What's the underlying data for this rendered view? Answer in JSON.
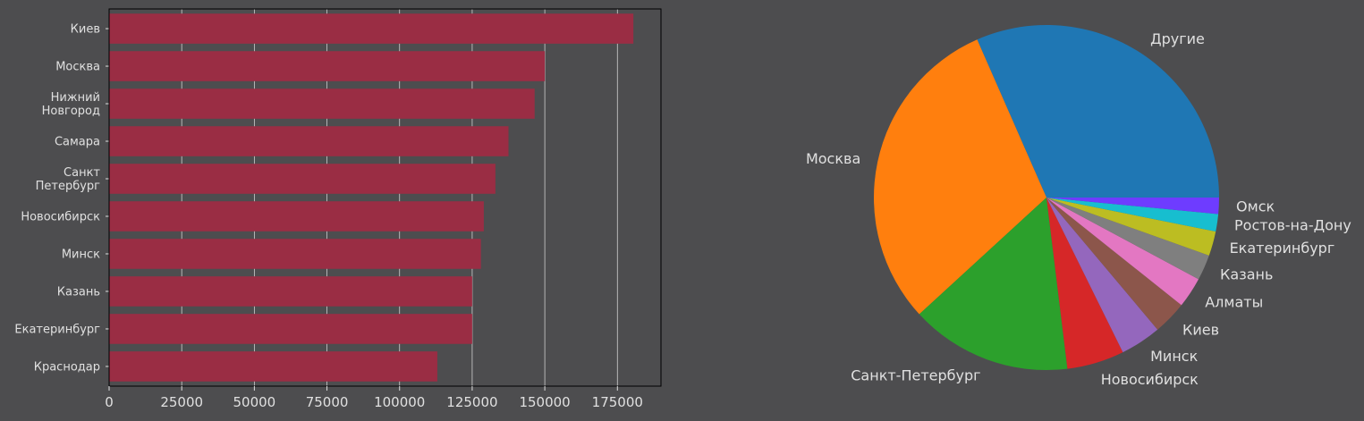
{
  "chart_data": [
    {
      "type": "bar",
      "orientation": "horizontal",
      "categories": [
        "Киев",
        "Москва",
        "Нижний\nНовгород",
        "Самара",
        "Санкт\nПетербург",
        "Новосибирск",
        "Минск",
        "Казань",
        "Екатеринбург",
        "Краснодар"
      ],
      "values": [
        180500,
        150000,
        146500,
        137500,
        133000,
        129000,
        128000,
        125000,
        125000,
        113000
      ],
      "xlim": [
        0,
        190000
      ],
      "xticks": [
        0,
        25000,
        50000,
        75000,
        100000,
        125000,
        150000,
        175000
      ],
      "grid": "x",
      "bar_color": "#9a2d44",
      "background": "#4d4d4f"
    },
    {
      "type": "pie",
      "labels": [
        "Другие",
        "Москва",
        "Санкт-Петербург",
        "Новосибирск",
        "Минск",
        "Киев",
        "Алматы",
        "Казань",
        "Екатеринбург",
        "Ростов-на-Дону",
        "Омск"
      ],
      "values": [
        33.0,
        31.6,
        15.8,
        5.6,
        4.0,
        3.3,
        3.0,
        2.5,
        2.4,
        1.7,
        1.6
      ],
      "colors": [
        "#1f77b4",
        "#ff7f0e",
        "#2ca02c",
        "#d62728",
        "#9467bd",
        "#8c564b",
        "#e377c2",
        "#7f7f7f",
        "#bcbd22",
        "#17becf",
        "#6e3cff"
      ],
      "start_angle_deg": 0,
      "direction": "counterclockwise"
    }
  ]
}
